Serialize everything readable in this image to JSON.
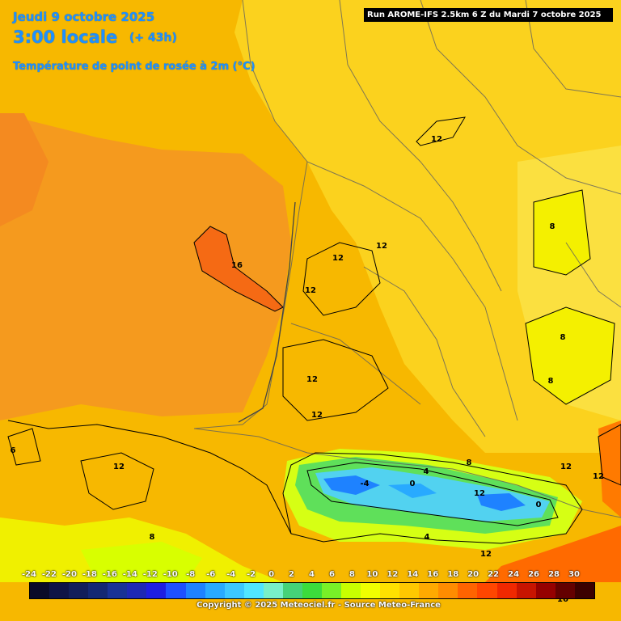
{
  "header": {
    "date": "Jeudi 9 octobre 2025",
    "time": "3:00 locale",
    "lead": "(+ 43h)",
    "parameter": "Température de point de rosée à 2m (°C)"
  },
  "run_label": "Run AROME-IFS 2.5km 6 Z du Mardi 7 octobre 2025",
  "contour_labels": [
    "12",
    "12",
    "12",
    "16",
    "12",
    "12",
    "12",
    "12",
    "12",
    "12",
    "8",
    "8",
    "8",
    "6",
    "8",
    "4",
    "4",
    "0",
    "-4",
    "0",
    "12",
    "8",
    "12",
    "16"
  ],
  "legend": {
    "ticks": [
      "-24",
      "-22",
      "-20",
      "-18",
      "-16",
      "-14",
      "-12",
      "-10",
      "-8",
      "-6",
      "-4",
      "-2",
      "0",
      "2",
      "4",
      "6",
      "8",
      "10",
      "12",
      "14",
      "16",
      "18",
      "20",
      "22",
      "24",
      "26",
      "28",
      "30"
    ],
    "colors": [
      "#0a0a28",
      "#0f1446",
      "#121e5a",
      "#142873",
      "#193296",
      "#1e28b4",
      "#1e1ee1",
      "#1e50ff",
      "#1e82ff",
      "#28aaff",
      "#3cc8ff",
      "#50e6ff",
      "#78f0c8",
      "#46d278",
      "#3cdc3c",
      "#78f028",
      "#c8ff00",
      "#f0ff00",
      "#ffe100",
      "#ffc800",
      "#ffaa00",
      "#ff8c00",
      "#ff6400",
      "#ff4600",
      "#f02800",
      "#c81400",
      "#960000",
      "#640000",
      "#3c0000"
    ]
  },
  "copyright": "Copyright © 2025 Meteociel.fr - Source Meteo-France"
}
